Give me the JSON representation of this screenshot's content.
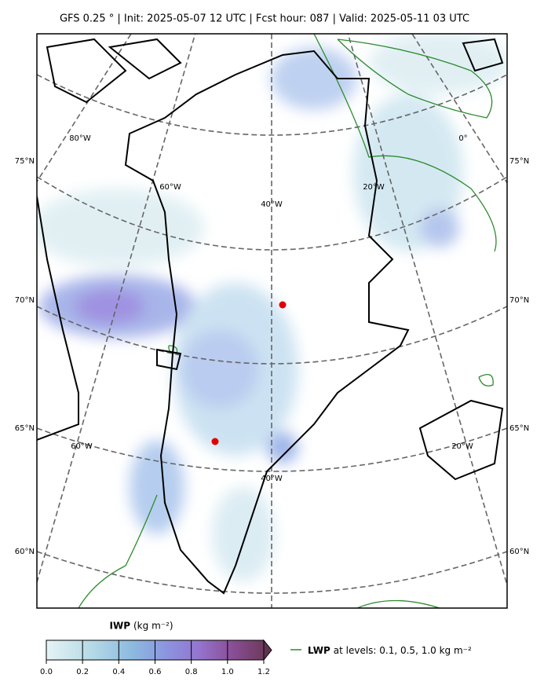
{
  "title": "GFS 0.25 °  |  Init: 2025-05-07 12 UTC  |  Fcst hour: 087  |  Valid: 2025-05-11 03 UTC",
  "lat_labels_left": [
    "75°N",
    "70°N",
    "65°N",
    "60°N"
  ],
  "lat_labels_right": [
    "75°N",
    "70°N",
    "65°N",
    "60°N"
  ],
  "lon_labels_top": [
    "80°W",
    "60°W",
    "40°W",
    "20°W",
    "0°"
  ],
  "lon_labels_bottom": [
    "60°W",
    "40°W",
    "20°W"
  ],
  "colorbar": {
    "label": "IWP",
    "unit": "(kg m⁻²)",
    "lim": [
      0,
      1.2
    ],
    "ticks": [
      {
        "value": 0,
        "label": "0.0"
      },
      0.2,
      0.4,
      0.6,
      0.8,
      {
        "value": 1,
        "label": "1.0"
      },
      1.2
    ]
  },
  "legend": {
    "label": "LWP",
    "text": "at levels: 0.1, 0.5, 1.0  kg m⁻²",
    "color": "#2e8b2e"
  }
}
